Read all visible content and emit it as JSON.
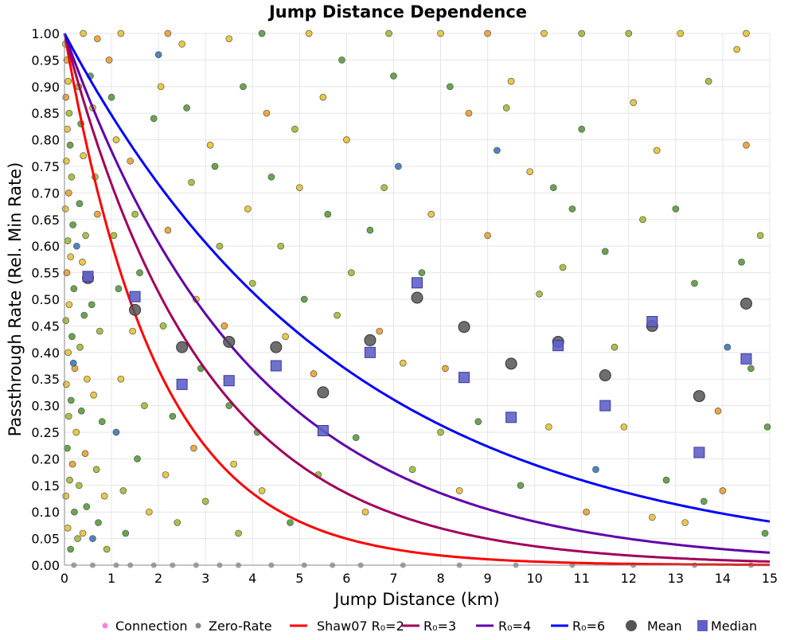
{
  "chart_data": {
    "type": "scatter",
    "title": "Jump Distance Dependence",
    "xlabel": "Jump Distance (km)",
    "ylabel": "Passthrough Rate (Rel. Min Rate)",
    "xlim": [
      0,
      15
    ],
    "ylim": [
      0,
      1
    ],
    "grid": true,
    "legend_placement": "bottom",
    "x_ticks": [
      "0",
      "1",
      "2",
      "3",
      "4",
      "5",
      "6",
      "7",
      "8",
      "9",
      "10",
      "11",
      "12",
      "13",
      "14",
      "15"
    ],
    "y_ticks": [
      "0.00",
      "0.05",
      "0.10",
      "0.15",
      "0.20",
      "0.25",
      "0.30",
      "0.35",
      "0.40",
      "0.45",
      "0.50",
      "0.55",
      "0.60",
      "0.65",
      "0.70",
      "0.75",
      "0.80",
      "0.85",
      "0.90",
      "0.95",
      "1.00"
    ],
    "legend": [
      {
        "label": "Connection",
        "kind": "dot",
        "color": "#f080f0"
      },
      {
        "label": "Zero-Rate",
        "kind": "dot",
        "color": "#888888"
      },
      {
        "label": "Shaw07 R₀=2",
        "kind": "line",
        "color": "#ff0000"
      },
      {
        "label": "R₀=3",
        "kind": "line",
        "color": "#a0005a"
      },
      {
        "label": "R₀=4",
        "kind": "line",
        "color": "#6000a8"
      },
      {
        "label": "R₀=6",
        "kind": "line",
        "color": "#0000ff"
      },
      {
        "label": "Mean",
        "kind": "circle",
        "color": "#555555"
      },
      {
        "label": "Median",
        "kind": "square",
        "color": "#6060c8"
      }
    ],
    "point_colors": [
      "#5a9a3c",
      "#9cbc34",
      "#e6c232",
      "#e8a12e",
      "#3a78b8"
    ],
    "connections": [
      [
        0.02,
        0.98,
        2
      ],
      [
        0.05,
        0.95,
        3
      ],
      [
        0.08,
        0.91,
        2
      ],
      [
        0.03,
        0.88,
        3
      ],
      [
        0.1,
        0.85,
        1
      ],
      [
        0.06,
        0.82,
        2
      ],
      [
        0.12,
        0.79,
        0
      ],
      [
        0.04,
        0.76,
        2
      ],
      [
        0.15,
        0.73,
        1
      ],
      [
        0.09,
        0.7,
        3
      ],
      [
        0.02,
        0.67,
        2
      ],
      [
        0.18,
        0.64,
        0
      ],
      [
        0.07,
        0.61,
        1
      ],
      [
        0.13,
        0.58,
        2
      ],
      [
        0.05,
        0.55,
        3
      ],
      [
        0.2,
        0.52,
        0
      ],
      [
        0.1,
        0.49,
        2
      ],
      [
        0.03,
        0.46,
        1
      ],
      [
        0.16,
        0.43,
        0
      ],
      [
        0.08,
        0.4,
        2
      ],
      [
        0.22,
        0.37,
        3
      ],
      [
        0.04,
        0.34,
        2
      ],
      [
        0.14,
        0.31,
        0
      ],
      [
        0.09,
        0.28,
        1
      ],
      [
        0.25,
        0.25,
        2
      ],
      [
        0.06,
        0.22,
        0
      ],
      [
        0.17,
        0.19,
        3
      ],
      [
        0.11,
        0.16,
        1
      ],
      [
        0.03,
        0.13,
        2
      ],
      [
        0.21,
        0.1,
        0
      ],
      [
        0.07,
        0.07,
        2
      ],
      [
        0.28,
        0.05,
        1
      ],
      [
        0.13,
        0.03,
        0
      ],
      [
        0.3,
        0.9,
        1
      ],
      [
        0.35,
        0.83,
        0
      ],
      [
        0.4,
        0.77,
        2
      ],
      [
        0.32,
        0.68,
        0
      ],
      [
        0.45,
        0.62,
        1
      ],
      [
        0.38,
        0.57,
        2
      ],
      [
        0.42,
        0.47,
        0
      ],
      [
        0.33,
        0.41,
        1
      ],
      [
        0.48,
        0.35,
        2
      ],
      [
        0.36,
        0.29,
        0
      ],
      [
        0.44,
        0.21,
        3
      ],
      [
        0.31,
        0.15,
        1
      ],
      [
        0.47,
        0.11,
        0
      ],
      [
        0.39,
        0.06,
        2
      ],
      [
        0.26,
        0.6,
        4
      ],
      [
        0.19,
        0.38,
        4
      ],
      [
        0.6,
        0.05,
        4
      ],
      [
        0.55,
        0.92,
        0
      ],
      [
        0.6,
        0.86,
        2
      ],
      [
        0.65,
        0.73,
        1
      ],
      [
        0.7,
        0.66,
        3
      ],
      [
        0.58,
        0.49,
        0
      ],
      [
        0.75,
        0.44,
        1
      ],
      [
        0.62,
        0.32,
        2
      ],
      [
        0.8,
        0.27,
        0
      ],
      [
        0.68,
        0.18,
        1
      ],
      [
        0.85,
        0.13,
        2
      ],
      [
        0.72,
        0.08,
        0
      ],
      [
        0.9,
        0.03,
        1
      ],
      [
        0.95,
        0.95,
        3
      ],
      [
        1.0,
        0.88,
        0
      ],
      [
        1.1,
        0.8,
        2
      ],
      [
        1.05,
        0.62,
        1
      ],
      [
        1.15,
        0.52,
        0
      ],
      [
        1.2,
        0.35,
        2
      ],
      [
        1.1,
        0.25,
        4
      ],
      [
        1.25,
        0.14,
        1
      ],
      [
        1.3,
        0.06,
        0
      ],
      [
        1.4,
        0.76,
        3
      ],
      [
        1.5,
        0.66,
        1
      ],
      [
        1.6,
        0.55,
        0
      ],
      [
        1.45,
        0.44,
        2
      ],
      [
        1.7,
        0.3,
        1
      ],
      [
        1.55,
        0.2,
        0
      ],
      [
        1.8,
        0.1,
        2
      ],
      [
        1.9,
        0.84,
        0
      ],
      [
        2.0,
        0.96,
        4
      ],
      [
        2.05,
        0.9,
        2
      ],
      [
        2.2,
        0.63,
        3
      ],
      [
        2.1,
        0.45,
        1
      ],
      [
        2.3,
        0.28,
        0
      ],
      [
        2.15,
        0.17,
        2
      ],
      [
        2.4,
        0.08,
        1
      ],
      [
        2.5,
        0.98,
        2
      ],
      [
        2.6,
        0.86,
        0
      ],
      [
        2.7,
        0.72,
        1
      ],
      [
        2.8,
        0.5,
        2
      ],
      [
        2.9,
        0.37,
        0
      ],
      [
        2.75,
        0.22,
        3
      ],
      [
        3.0,
        0.12,
        1
      ],
      [
        3.1,
        0.79,
        2
      ],
      [
        3.2,
        0.75,
        0
      ],
      [
        3.3,
        0.6,
        1
      ],
      [
        3.4,
        0.45,
        3
      ],
      [
        3.5,
        0.3,
        0
      ],
      [
        3.6,
        0.19,
        2
      ],
      [
        3.7,
        0.06,
        1
      ],
      [
        3.8,
        0.9,
        0
      ],
      [
        3.9,
        0.67,
        2
      ],
      [
        4.0,
        0.53,
        1
      ],
      [
        4.1,
        0.25,
        0
      ],
      [
        4.2,
        0.14,
        2
      ],
      [
        4.3,
        0.85,
        3
      ],
      [
        4.4,
        0.73,
        0
      ],
      [
        4.6,
        0.6,
        1
      ],
      [
        4.7,
        0.43,
        2
      ],
      [
        4.8,
        0.08,
        0
      ],
      [
        4.9,
        0.82,
        1
      ],
      [
        5.0,
        0.71,
        2
      ],
      [
        5.1,
        0.5,
        0
      ],
      [
        5.3,
        0.36,
        3
      ],
      [
        5.4,
        0.17,
        1
      ],
      [
        5.5,
        0.88,
        2
      ],
      [
        5.6,
        0.66,
        0
      ],
      [
        5.8,
        0.47,
        1
      ],
      [
        5.9,
        0.95,
        0
      ],
      [
        6.0,
        0.8,
        2
      ],
      [
        6.1,
        0.55,
        1
      ],
      [
        6.2,
        0.24,
        0
      ],
      [
        6.4,
        0.1,
        2
      ],
      [
        6.5,
        0.63,
        0
      ],
      [
        6.7,
        0.44,
        3
      ],
      [
        6.8,
        0.71,
        1
      ],
      [
        7.0,
        0.92,
        0
      ],
      [
        7.1,
        0.75,
        4
      ],
      [
        7.2,
        0.38,
        2
      ],
      [
        7.4,
        0.18,
        1
      ],
      [
        7.6,
        0.55,
        0
      ],
      [
        7.8,
        0.66,
        2
      ],
      [
        8.0,
        0.25,
        1
      ],
      [
        8.1,
        0.37,
        3
      ],
      [
        8.2,
        0.9,
        0
      ],
      [
        8.4,
        0.14,
        2
      ],
      [
        8.6,
        0.85,
        3
      ],
      [
        8.8,
        0.27,
        0
      ],
      [
        9.0,
        0.62,
        3
      ],
      [
        9.2,
        0.78,
        4
      ],
      [
        9.4,
        0.86,
        1
      ],
      [
        9.5,
        0.91,
        2
      ],
      [
        9.7,
        0.15,
        0
      ],
      [
        9.9,
        0.74,
        2
      ],
      [
        10.1,
        0.51,
        1
      ],
      [
        10.3,
        0.26,
        2
      ],
      [
        10.4,
        0.71,
        0
      ],
      [
        10.6,
        0.56,
        1
      ],
      [
        10.8,
        0.67,
        0
      ],
      [
        11.0,
        0.82,
        0
      ],
      [
        11.1,
        0.1,
        3
      ],
      [
        11.3,
        0.18,
        4
      ],
      [
        11.5,
        0.59,
        0
      ],
      [
        11.7,
        0.41,
        1
      ],
      [
        11.9,
        0.26,
        2
      ],
      [
        12.1,
        0.87,
        2
      ],
      [
        12.3,
        0.65,
        1
      ],
      [
        12.5,
        0.09,
        2
      ],
      [
        12.6,
        0.78,
        2
      ],
      [
        12.8,
        0.16,
        0
      ],
      [
        13.0,
        0.67,
        0
      ],
      [
        13.2,
        0.08,
        2
      ],
      [
        13.4,
        0.53,
        0
      ],
      [
        13.6,
        0.12,
        0
      ],
      [
        13.7,
        0.91,
        1
      ],
      [
        13.9,
        0.29,
        3
      ],
      [
        14.0,
        0.14,
        3
      ],
      [
        14.1,
        0.41,
        4
      ],
      [
        14.3,
        0.97,
        2
      ],
      [
        14.4,
        0.57,
        0
      ],
      [
        14.5,
        0.79,
        3
      ],
      [
        14.6,
        0.37,
        0
      ],
      [
        14.8,
        0.62,
        1
      ],
      [
        14.9,
        0.06,
        0
      ],
      [
        14.95,
        0.26,
        0
      ],
      [
        3.5,
        0.99,
        2
      ],
      [
        6.9,
        1.0,
        1
      ],
      [
        10.2,
        1.0,
        2
      ],
      [
        12.0,
        1.0,
        1
      ],
      [
        13.1,
        1.0,
        2
      ],
      [
        1.2,
        1.0,
        2
      ],
      [
        2.2,
        1.0,
        3
      ],
      [
        4.2,
        1.0,
        0
      ],
      [
        5.2,
        1.0,
        2
      ],
      [
        8.0,
        1.0,
        2
      ],
      [
        9.0,
        1.0,
        3
      ],
      [
        11.0,
        1.0,
        1
      ],
      [
        14.5,
        1.0,
        2
      ],
      [
        0.4,
        1.0,
        2
      ],
      [
        0.7,
        0.99,
        3
      ]
    ],
    "zero_rate_x": [
      0.2,
      0.6,
      1.1,
      1.4,
      1.9,
      2.3,
      2.8,
      3.3,
      3.7,
      4.4,
      5.1,
      5.7,
      6.3,
      7.2,
      8.4,
      9.6,
      10.8,
      12.1,
      13.4,
      14.6
    ],
    "curves": [
      {
        "name": "Shaw07 R₀=2",
        "R0": 2,
        "color": "#ff0000",
        "formula": "exp(-x/R0)"
      },
      {
        "name": "R₀=3",
        "R0": 3,
        "color": "#a0005a",
        "formula": "exp(-x/R0)"
      },
      {
        "name": "R₀=4",
        "R0": 4,
        "color": "#6000a8",
        "formula": "exp(-x/R0)"
      },
      {
        "name": "R₀=6",
        "R0": 6,
        "color": "#0000ff",
        "formula": "exp(-x/R0)"
      }
    ],
    "mean": {
      "x": [
        0.5,
        1.5,
        2.5,
        3.5,
        4.5,
        5.5,
        6.5,
        7.5,
        8.5,
        9.5,
        10.5,
        11.5,
        12.5,
        13.5,
        14.5
      ],
      "y": [
        0.54,
        0.48,
        0.41,
        0.42,
        0.41,
        0.325,
        0.423,
        0.503,
        0.448,
        0.379,
        0.42,
        0.357,
        0.45,
        0.318,
        0.492
      ]
    },
    "median": {
      "x": [
        0.5,
        1.5,
        2.5,
        3.5,
        4.5,
        5.5,
        6.5,
        7.5,
        8.5,
        9.5,
        10.5,
        11.5,
        12.5,
        13.5,
        14.5
      ],
      "y": [
        0.543,
        0.505,
        0.34,
        0.347,
        0.375,
        0.253,
        0.4,
        0.531,
        0.353,
        0.278,
        0.413,
        0.3,
        0.458,
        0.212,
        0.388
      ]
    }
  }
}
